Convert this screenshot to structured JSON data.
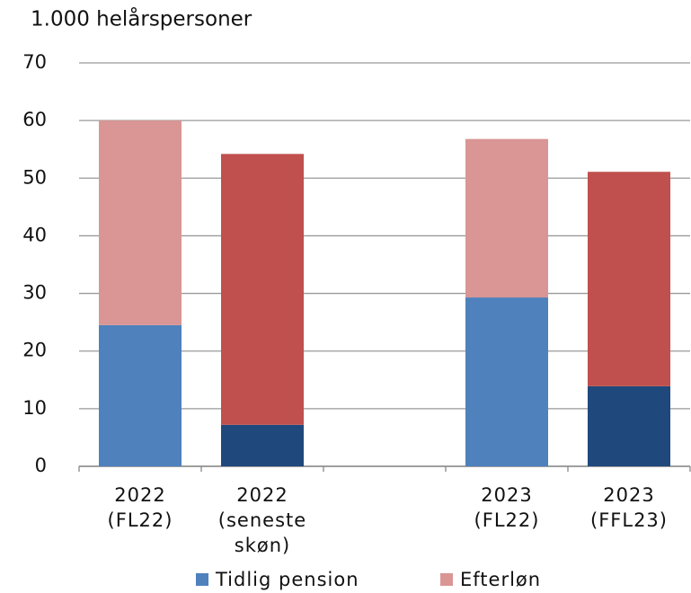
{
  "chart_data": {
    "type": "stacked_bar",
    "title": "1.000 helårspersoner",
    "categories": [
      [
        "2022",
        "(FL22)"
      ],
      [
        "2022",
        "(seneste",
        "skøn)"
      ],
      null,
      [
        "2023",
        "(FL22)"
      ],
      [
        "2023",
        "(FFL23)"
      ]
    ],
    "series": [
      {
        "name": "Tidlig pension",
        "color": "#4f81bd",
        "colors": [
          "#4f81bd",
          "#1f497d",
          null,
          "#4f81bd",
          "#1f497d"
        ],
        "values": [
          24.5,
          7.2,
          null,
          29.3,
          13.9
        ]
      },
      {
        "name": "Efterløn",
        "color": "#d99694",
        "colors": [
          "#d99694",
          "#c0504d",
          null,
          "#d99694",
          "#c0504d"
        ],
        "values": [
          35.5,
          47.0,
          null,
          27.5,
          37.2
        ]
      }
    ],
    "ylim": [
      0,
      70
    ],
    "yticks": [
      0,
      10,
      20,
      30,
      40,
      50,
      60,
      70
    ],
    "grid": true,
    "legend": "bottom"
  }
}
